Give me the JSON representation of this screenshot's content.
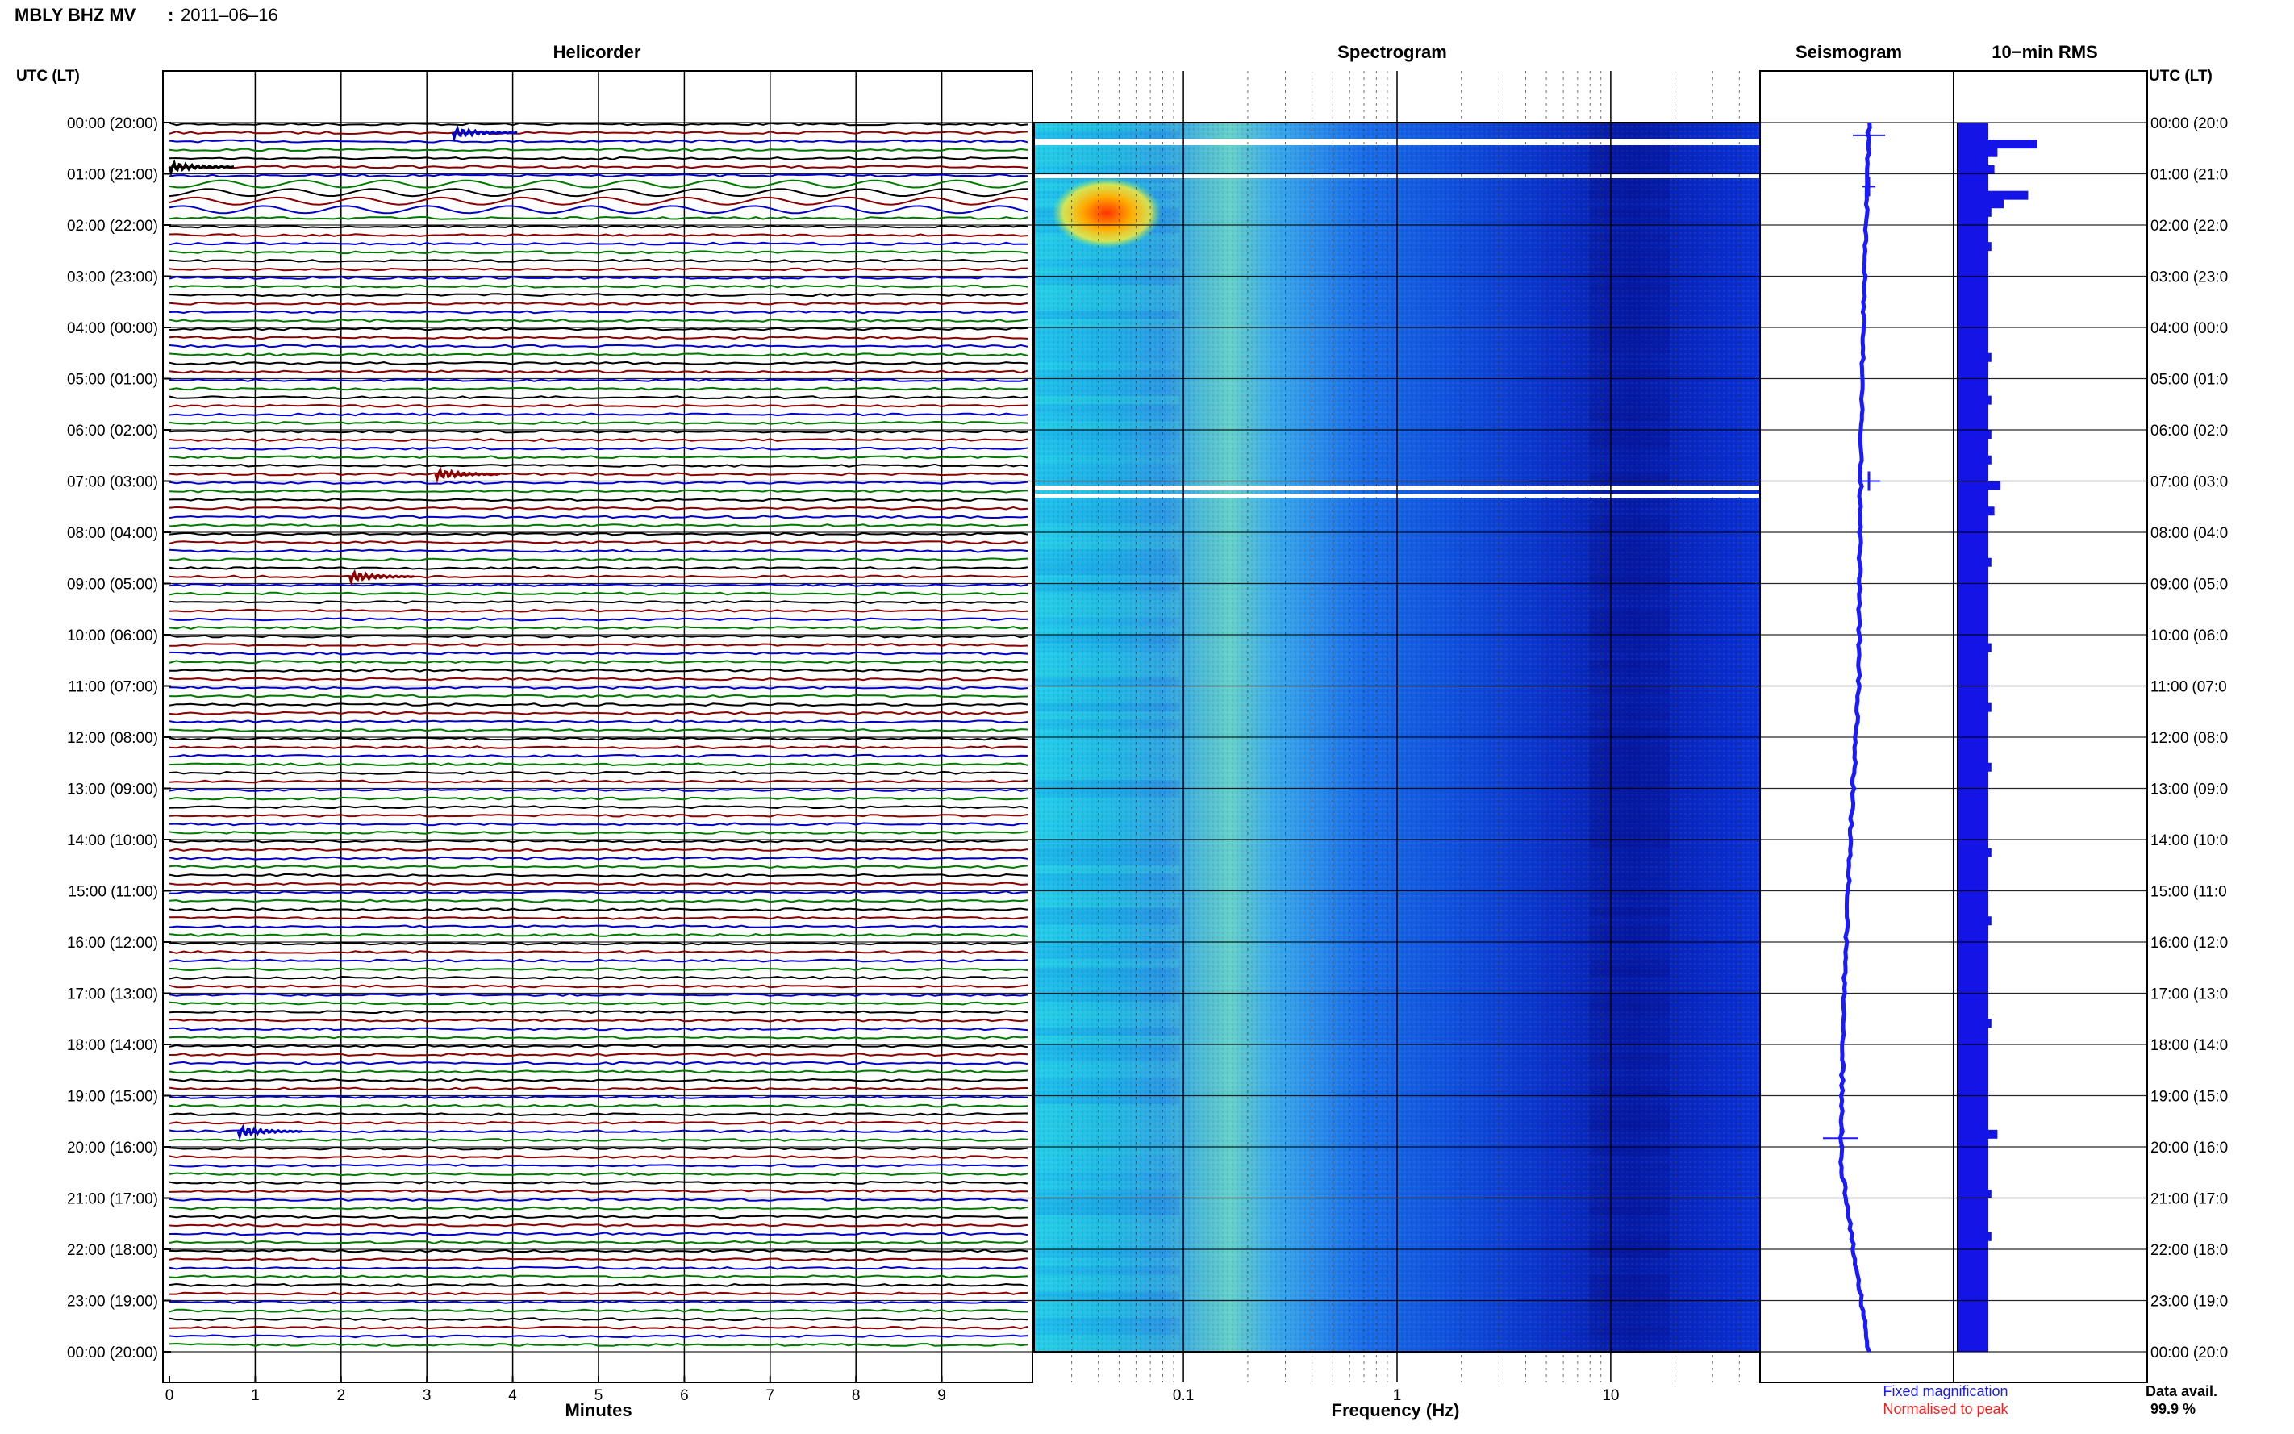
{
  "header": {
    "station": "MBLY BHZ MV",
    "separator": ":",
    "date": "2011–06–16"
  },
  "panels": {
    "helicorder": "Helicorder",
    "spectrogram": "Spectrogram",
    "seismogram": "Seismogram",
    "rms": "10−min RMS"
  },
  "axes": {
    "left_title": "UTC (LT)",
    "right_title": "UTC (LT)",
    "minutes_label": "Minutes",
    "frequency_label": "Frequency (Hz)",
    "minutes_ticks": [
      "0",
      "1",
      "2",
      "3",
      "4",
      "5",
      "6",
      "7",
      "8",
      "9"
    ],
    "frequency_ticks": [
      "0.1",
      "1",
      "10"
    ],
    "time_labels_left": [
      "00:00 (20:00)",
      "01:00 (21:00)",
      "02:00 (22:00)",
      "03:00 (23:00)",
      "04:00 (00:00)",
      "05:00 (01:00)",
      "06:00 (02:00)",
      "07:00 (03:00)",
      "08:00 (04:00)",
      "09:00 (05:00)",
      "10:00 (06:00)",
      "11:00 (07:00)",
      "12:00 (08:00)",
      "13:00 (09:00)",
      "14:00 (10:00)",
      "15:00 (11:00)",
      "16:00 (12:00)",
      "17:00 (13:00)",
      "18:00 (14:00)",
      "19:00 (15:00)",
      "20:00 (16:00)",
      "21:00 (17:00)",
      "22:00 (18:00)",
      "23:00 (19:00)",
      "00:00 (20:00)"
    ],
    "time_labels_right": [
      "00:00 (20:0",
      "01:00 (21:0",
      "02:00 (22:0",
      "03:00 (23:0",
      "04:00 (00:0",
      "05:00 (01:0",
      "06:00 (02:0",
      "07:00 (03:0",
      "08:00 (04:0",
      "09:00 (05:0",
      "10:00 (06:0",
      "11:00 (07:0",
      "12:00 (08:0",
      "13:00 (09:0",
      "14:00 (10:0",
      "15:00 (11:0",
      "16:00 (12:0",
      "17:00 (13:0",
      "18:00 (14:0",
      "19:00 (15:0",
      "20:00 (16:0",
      "21:00 (17:0",
      "22:00 (18:0",
      "23:00 (19:0",
      "00:00 (20:0"
    ]
  },
  "legend": {
    "fixed": "Fixed magnification",
    "fixed_color": "#1a1aff",
    "normalised": "Normalised to peak",
    "normalised_color": "#ff1a1a"
  },
  "availability": {
    "label": "Data avail.",
    "value": "99.9 %"
  },
  "colors": {
    "trace_cycle": [
      "#000000",
      "#8b0000",
      "#0000cd",
      "#007a00"
    ],
    "seismogram": "#1a1aff",
    "rms_bars": "#1414e6",
    "spectrogram_low": "#00008b",
    "spectrogram_high": "#ff3300"
  },
  "chart_data": [
    {
      "type": "line",
      "title": "Helicorder",
      "xlabel": "Minutes",
      "xlim": [
        0,
        10
      ],
      "rows": 144,
      "row_minutes": 10,
      "events": [
        {
          "time": "00:10",
          "minute": 3.3,
          "color": "#0000cd"
        },
        {
          "time": "00:50",
          "minute": 0,
          "color": "#000000",
          "note": ""
        },
        {
          "time": "06:50",
          "minute": 3.1,
          "color": "#8b0000"
        },
        {
          "time": "08:50",
          "minute": 2.1,
          "color": "#8b0000"
        },
        {
          "time": "19:40",
          "minute": 0.8,
          "color": "#0000cd"
        }
      ]
    },
    {
      "type": "heatmap",
      "title": "Spectrogram",
      "xlabel": "Frequency (Hz)",
      "x_scale": "log",
      "xlim": [
        0.02,
        50
      ],
      "hot_spot": {
        "time": "01:30-02:15",
        "frequency_range_hz": [
          0.03,
          0.08
        ]
      }
    },
    {
      "type": "line",
      "title": "Seismogram",
      "note_values": "long-period drift of the running trace, spikes near 00:15, 01:15, 07:00, 19:50"
    },
    {
      "type": "bar",
      "title": "10−min RMS",
      "orientation": "horizontal",
      "rows": 144,
      "row_minutes": 10,
      "values": [
        1.0,
        1.0,
        2.6,
        1.3,
        1.0,
        1.2,
        1.0,
        1.0,
        2.3,
        1.5,
        1.1,
        1.0,
        1.0,
        1.0,
        1.1,
        1.0,
        1.0,
        1.0,
        1.0,
        1.0,
        1.0,
        1.0,
        1.0,
        1.0,
        1.0,
        1.0,
        1.0,
        1.1,
        1.0,
        1.0,
        1.0,
        1.0,
        1.1,
        1.0,
        1.0,
        1.0,
        1.1,
        1.0,
        1.0,
        1.1,
        1.0,
        1.0,
        1.4,
        1.0,
        1.0,
        1.2,
        1.0,
        1.0,
        1.0,
        1.0,
        1.0,
        1.1,
        1.0,
        1.0,
        1.0,
        1.0,
        1.0,
        1.0,
        1.0,
        1.0,
        1.0,
        1.1,
        1.0,
        1.0,
        1.0,
        1.0,
        1.0,
        1.0,
        1.1,
        1.0,
        1.0,
        1.0,
        1.0,
        1.0,
        1.0,
        1.1,
        1.0,
        1.0,
        1.0,
        1.0,
        1.0,
        1.0,
        1.0,
        1.0,
        1.0,
        1.1,
        1.0,
        1.0,
        1.0,
        1.0,
        1.0,
        1.0,
        1.0,
        1.1,
        1.0,
        1.0,
        1.0,
        1.0,
        1.0,
        1.0,
        1.0,
        1.0,
        1.0,
        1.0,
        1.0,
        1.1,
        1.0,
        1.0,
        1.0,
        1.0,
        1.0,
        1.0,
        1.0,
        1.0,
        1.0,
        1.0,
        1.0,
        1.0,
        1.3,
        1.0,
        1.0,
        1.0,
        1.0,
        1.0,
        1.0,
        1.1,
        1.0,
        1.0,
        1.0,
        1.0,
        1.1,
        1.0,
        1.0,
        1.0,
        1.0,
        1.0,
        1.0,
        1.0,
        1.0,
        1.0,
        1.0,
        1.0,
        1.0,
        1.0
      ]
    }
  ]
}
